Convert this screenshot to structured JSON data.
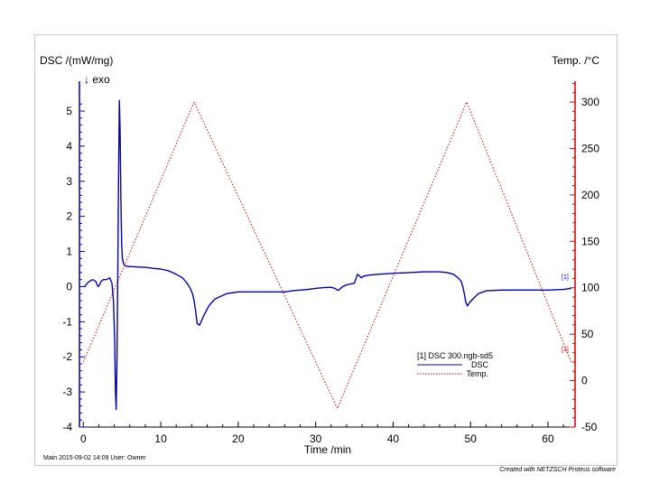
{
  "chart_data": {
    "type": "line",
    "left_axis": {
      "label": "DSC /(mW/mg)",
      "exo_marker": "↓  exo",
      "range": [
        -4,
        5.5
      ],
      "ticks": [
        -4,
        -3,
        -2,
        -1,
        0,
        1,
        2,
        3,
        4,
        5
      ],
      "color": "#0000bb"
    },
    "right_axis": {
      "label": "Temp. /°C",
      "range": [
        -50,
        320
      ],
      "ticks": [
        -50,
        0,
        50,
        100,
        150,
        200,
        250,
        300
      ],
      "color": "#cc0000"
    },
    "x_axis": {
      "label": "Time /min",
      "range": [
        -0.5,
        63.5
      ],
      "ticks": [
        0,
        10,
        20,
        30,
        40,
        50,
        60
      ]
    },
    "series": [
      {
        "id": "dsc",
        "axis": "left",
        "color": "#0000bb",
        "style": "solid",
        "x": [
          0,
          0.2,
          0.5,
          0.8,
          1.2,
          1.6,
          1.9,
          2.1,
          2.3,
          2.6,
          3.0,
          3.4,
          3.7,
          3.9,
          4.05,
          4.15,
          4.25,
          4.35,
          4.45,
          4.55,
          4.65,
          4.75,
          4.85,
          4.95,
          5.05,
          5.2,
          5.4,
          5.6,
          5.9,
          6.3,
          7,
          8,
          9,
          10,
          11,
          12,
          12.8,
          13.4,
          13.8,
          14.1,
          14.3,
          14.5,
          14.7,
          15.0,
          15.5,
          16.2,
          17,
          18.5,
          20,
          22,
          24,
          26,
          27,
          28,
          29,
          30,
          31,
          32,
          32.5,
          32.8,
          33.0,
          33.2,
          33.5,
          34,
          35,
          35.4,
          35.7,
          35.9,
          36.2,
          37,
          38,
          40,
          42,
          44,
          46,
          47,
          47.8,
          48.4,
          48.8,
          49.0,
          49.2,
          49.4,
          49.6,
          49.9,
          50.3,
          51,
          52,
          54,
          56,
          58,
          60,
          62,
          63
        ],
        "y": [
          0.0,
          0.0,
          0.1,
          0.15,
          0.2,
          0.15,
          0.0,
          0.05,
          0.15,
          0.2,
          0.2,
          0.25,
          0.1,
          -0.4,
          -1.5,
          -3.0,
          -3.5,
          -2.0,
          0.5,
          3.0,
          5.3,
          4.5,
          2.5,
          1.2,
          0.8,
          0.65,
          0.6,
          0.58,
          0.57,
          0.57,
          0.56,
          0.55,
          0.52,
          0.5,
          0.45,
          0.35,
          0.25,
          0.1,
          -0.05,
          -0.2,
          -0.4,
          -0.7,
          -1.05,
          -1.1,
          -0.85,
          -0.55,
          -0.35,
          -0.2,
          -0.15,
          -0.15,
          -0.15,
          -0.15,
          -0.12,
          -0.1,
          -0.08,
          -0.05,
          -0.03,
          -0.02,
          -0.05,
          -0.1,
          -0.1,
          -0.05,
          0.0,
          0.05,
          0.1,
          0.35,
          0.3,
          0.25,
          0.3,
          0.33,
          0.35,
          0.38,
          0.4,
          0.42,
          0.42,
          0.4,
          0.35,
          0.25,
          0.15,
          0.0,
          -0.2,
          -0.45,
          -0.55,
          -0.45,
          -0.35,
          -0.2,
          -0.12,
          -0.1,
          -0.1,
          -0.1,
          -0.1,
          -0.08,
          -0.05
        ]
      },
      {
        "id": "temp",
        "axis": "right",
        "color": "#cc0000",
        "style": "dotted",
        "x": [
          0,
          14.3,
          32.8,
          49.5,
          63
        ],
        "y": [
          20,
          300,
          -30,
          300,
          20
        ]
      }
    ],
    "legend": {
      "title": "[1] DSC 300.ngb-sd5",
      "entries": [
        "DSC",
        "Temp."
      ],
      "placement": "bottom-right"
    },
    "curve_tags": [
      "[1]",
      "[1]"
    ]
  },
  "footer": {
    "left": "Main   2015-09-02 14:09   User: Owner",
    "right": "Created with NETZSCH Proteus software"
  }
}
